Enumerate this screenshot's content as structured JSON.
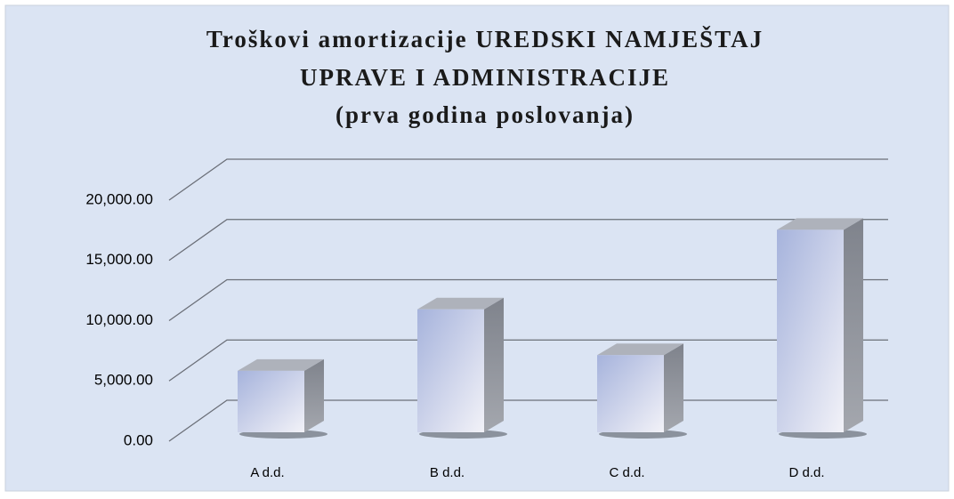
{
  "chart_data": {
    "type": "bar3d",
    "title": [
      "Troškovi amortizacije UREDSKI NAMJEŠTAJ",
      "UPRAVE I ADMINISTRACIJE",
      "(prva godina poslovanja)"
    ],
    "categories": [
      "A d.d.",
      "B d.d.",
      "C d.d.",
      "D d.d."
    ],
    "values": [
      5100,
      10200,
      6400,
      16800
    ],
    "color": "#a6b3dc",
    "ylim": [
      0,
      20000
    ],
    "yticks": [
      {
        "value": 0,
        "label": "0.00"
      },
      {
        "value": 5000,
        "label": "5,000.00"
      },
      {
        "value": 10000,
        "label": "10,000.00"
      },
      {
        "value": 15000,
        "label": "15,000.00"
      },
      {
        "value": 20000,
        "label": "20,000.00"
      }
    ],
    "grid": true
  }
}
